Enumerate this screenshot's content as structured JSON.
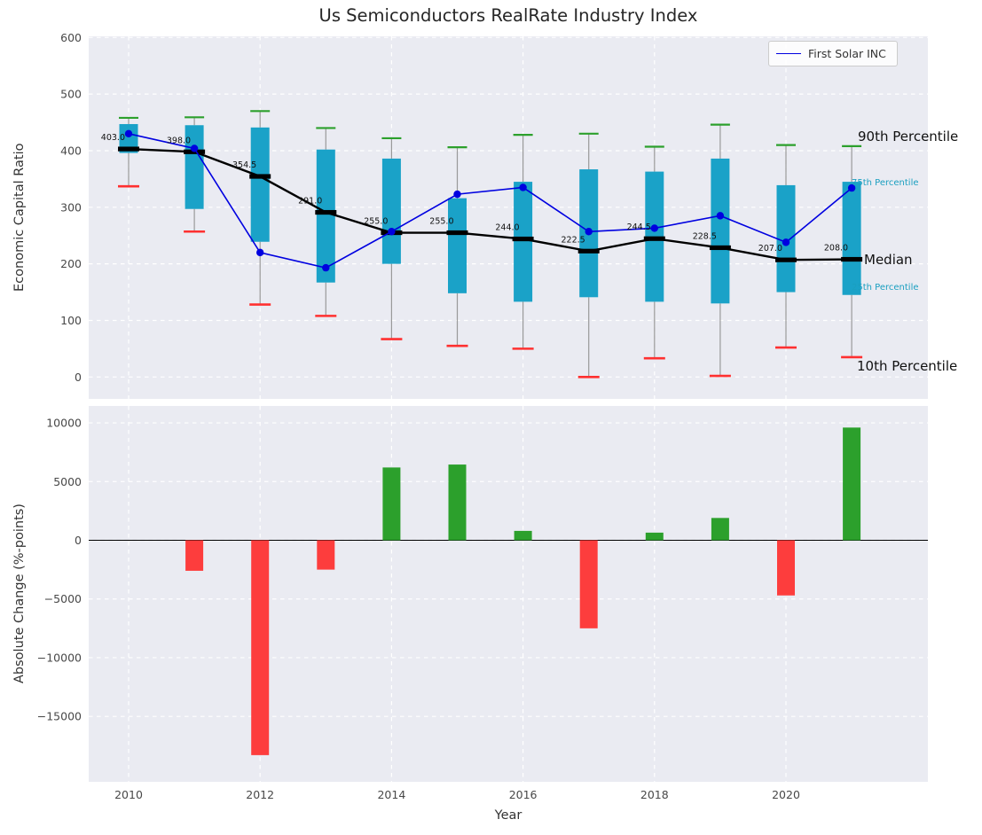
{
  "title": "Us Semiconductors RealRate Industry Index",
  "legend": {
    "label": "First Solar INC"
  },
  "annotations": {
    "p90": "90th Percentile",
    "p75": "75th Percentile",
    "median": "Median",
    "p25": "25th Percentile",
    "p10": "10th Percentile"
  },
  "colors": {
    "box": "#1aa2c8",
    "percentile_label": "#1a9fc0",
    "whisker": "#999999",
    "cap_high": "#2ca02c",
    "cap_low": "#ff3030",
    "median_line": "#000000",
    "company_line": "#0000e0",
    "bar_positive": "#2ca02c",
    "bar_negative": "#fd3d3d",
    "axes_bg": "#eaebf2",
    "grid": "#ffffff",
    "tick": "#484848"
  },
  "chart_data": [
    {
      "type": "boxplot",
      "title": "Us Semiconductors RealRate Industry Index",
      "ylabel": "Economic Capital Ratio",
      "ylim": [
        -40,
        602
      ],
      "yticks": [
        0,
        100,
        200,
        300,
        400,
        500,
        600
      ],
      "grid": true,
      "years": [
        2010,
        2011,
        2012,
        2013,
        2014,
        2015,
        2016,
        2017,
        2018,
        2019,
        2020,
        2021
      ],
      "median": [
        403.0,
        398.0,
        354.5,
        291.0,
        255.0,
        255.0,
        244.0,
        222.5,
        244.5,
        228.5,
        207.0,
        208.0
      ],
      "q1": [
        396,
        297,
        239,
        167,
        200,
        148,
        133,
        141,
        133,
        130,
        150,
        145
      ],
      "q3": [
        447,
        445,
        441,
        402,
        386,
        316,
        345,
        367,
        363,
        386,
        339,
        345
      ],
      "whisker_low_p10": [
        337,
        257,
        128,
        108,
        67,
        55,
        50,
        0,
        33,
        2,
        52,
        35
      ],
      "whisker_high_p90": [
        458,
        459,
        470,
        440,
        422,
        406,
        428,
        430,
        407,
        446,
        410,
        408
      ],
      "series": [
        {
          "name": "First Solar INC",
          "values": [
            430,
            404,
            220,
            193,
            257,
            323,
            335,
            257,
            263,
            285,
            238,
            334
          ]
        }
      ],
      "legend_position": "upper right"
    },
    {
      "type": "bar",
      "ylabel": "Absolute Change (%-points)",
      "xlabel": "Year",
      "ylim": [
        -20600,
        11400
      ],
      "yticks": [
        10000,
        5000,
        0,
        -5000,
        -10000,
        -15000
      ],
      "xticks": [
        2010,
        2012,
        2014,
        2016,
        2018,
        2020
      ],
      "grid": true,
      "years": [
        2011,
        2012,
        2013,
        2014,
        2015,
        2016,
        2017,
        2018,
        2019,
        2020,
        2021
      ],
      "values": [
        -2600,
        -18300,
        -2500,
        6200,
        6450,
        800,
        -7500,
        650,
        1900,
        -4700,
        9600
      ]
    }
  ]
}
